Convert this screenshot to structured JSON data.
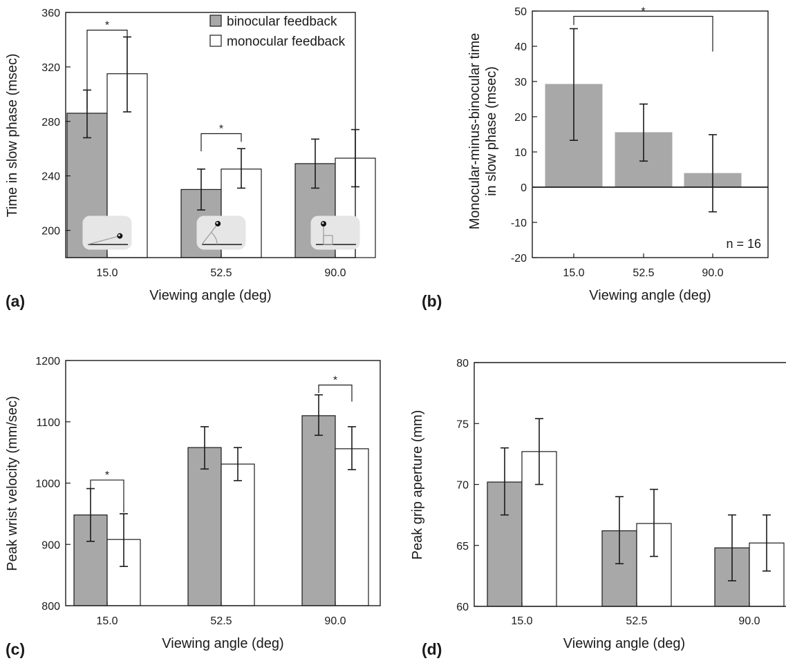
{
  "chart_data": [
    {
      "panel": "(a)",
      "type": "bar",
      "categories": [
        "15.0",
        "52.5",
        "90.0"
      ],
      "series": [
        {
          "name": "binocular feedback",
          "color": "#a8a8a8",
          "values": [
            286,
            230,
            249
          ],
          "err_low": [
            268,
            215,
            231
          ],
          "err_high": [
            303,
            245,
            267
          ]
        },
        {
          "name": "monocular feedback",
          "color": "#ffffff",
          "values": [
            315,
            245,
            253
          ],
          "err_low": [
            287,
            231,
            232
          ],
          "err_high": [
            342,
            260,
            274
          ]
        }
      ],
      "xlabel": "Viewing angle (deg)",
      "ylabel": "Time in slow phase (msec)",
      "ylim": [
        180,
        360
      ],
      "yticks": [
        "200",
        "240",
        "280",
        "320",
        "360"
      ],
      "yticks_values": [
        200,
        240,
        280,
        320,
        360
      ],
      "legend": "top-right",
      "significance": [
        {
          "category": 0,
          "text": "*",
          "level": 347
        },
        {
          "category": 1,
          "text": "*",
          "level": 271
        }
      ],
      "insets": [
        "15-degree viewing angle icon",
        "52.5-degree viewing angle icon",
        "90-degree viewing angle icon"
      ]
    },
    {
      "panel": "(b)",
      "type": "bar",
      "categories": [
        "15.0",
        "52.5",
        "90.0"
      ],
      "series": [
        {
          "color": "#a8a8a8",
          "values": [
            29.3,
            15.6,
            4.0
          ],
          "err_low": [
            13.3,
            7.4,
            -7.0
          ],
          "err_high": [
            45.0,
            23.6,
            14.9
          ]
        }
      ],
      "xlabel": "Viewing angle (deg)",
      "ylabel": [
        "Monocular-minus-binocular time",
        "in slow phase (msec)"
      ],
      "ylim": [
        -20,
        50
      ],
      "yticks": [
        "-20",
        "-10",
        "0",
        "10",
        "20",
        "30",
        "40",
        "50"
      ],
      "yticks_values": [
        -20,
        -10,
        0,
        10,
        20,
        30,
        40,
        50
      ],
      "zero_line": true,
      "annotation": "n = 16",
      "significance": [
        {
          "from": 0,
          "to": 2,
          "text": "*",
          "level": 48.5
        }
      ]
    },
    {
      "panel": "(c)",
      "type": "bar",
      "categories": [
        "15.0",
        "52.5",
        "90.0"
      ],
      "series": [
        {
          "color": "#a8a8a8",
          "values": [
            948,
            1058,
            1110
          ],
          "err_low": [
            905,
            1023,
            1078
          ],
          "err_high": [
            991,
            1092,
            1144
          ]
        },
        {
          "color": "#ffffff",
          "values": [
            908,
            1031,
            1056
          ],
          "err_low": [
            864,
            1004,
            1022
          ],
          "err_high": [
            950,
            1058,
            1092
          ]
        }
      ],
      "xlabel": "Viewing angle (deg)",
      "ylabel": "Peak wrist velocity (mm/sec)",
      "ylim": [
        800,
        1200
      ],
      "yticks": [
        "800",
        "900",
        "1000",
        "1100",
        "1200"
      ],
      "yticks_values": [
        800,
        900,
        1000,
        1100,
        1200
      ],
      "significance": [
        {
          "category": 0,
          "text": "*",
          "level": 1005
        },
        {
          "category": 2,
          "text": "*",
          "level": 1160
        }
      ]
    },
    {
      "panel": "(d)",
      "type": "bar",
      "categories": [
        "15.0",
        "52.5",
        "90.0"
      ],
      "series": [
        {
          "color": "#a8a8a8",
          "values": [
            70.2,
            66.2,
            64.8
          ],
          "err_low": [
            67.5,
            63.5,
            62.1
          ],
          "err_high": [
            73.0,
            69.0,
            67.5
          ]
        },
        {
          "color": "#ffffff",
          "values": [
            72.7,
            66.8,
            65.2
          ],
          "err_low": [
            70.0,
            64.1,
            62.9
          ],
          "err_high": [
            75.4,
            69.6,
            67.5
          ]
        }
      ],
      "xlabel": "Viewing angle (deg)",
      "ylabel": "Peak grip aperture (mm)",
      "ylim": [
        60,
        80
      ],
      "yticks": [
        "60",
        "65",
        "70",
        "75",
        "80"
      ],
      "yticks_values": [
        60,
        65,
        70,
        75,
        80
      ],
      "frame": "open-right"
    }
  ]
}
